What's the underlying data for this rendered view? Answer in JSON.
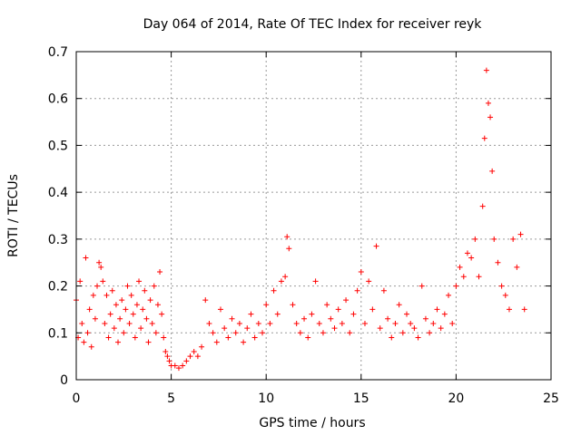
{
  "chart_data": {
    "type": "scatter",
    "title": "Day 064 of 2014, Rate Of TEC Index for receiver reyk",
    "xlabel": "GPS time / hours",
    "ylabel": "ROTI / TECUs",
    "xlim": [
      0,
      25
    ],
    "ylim": [
      0,
      0.7
    ],
    "xticks": [
      0,
      5,
      10,
      15,
      20,
      25
    ],
    "yticks": [
      0,
      0.1,
      0.2,
      0.3,
      0.4,
      0.5,
      0.6,
      0.7
    ],
    "xtick_labels": [
      "0",
      "5",
      "10",
      "15",
      "20",
      "25"
    ],
    "ytick_labels": [
      "0",
      "0.1",
      "0.2",
      "0.3",
      "0.4",
      "0.5",
      "0.6",
      "0.7"
    ],
    "grid": true,
    "marker": "+",
    "color": "#ff0000",
    "series": [
      {
        "name": "ROTI",
        "x": [
          0.0,
          0.1,
          0.2,
          0.3,
          0.4,
          0.5,
          0.6,
          0.7,
          0.8,
          0.9,
          1.0,
          1.1,
          1.2,
          1.3,
          1.4,
          1.5,
          1.6,
          1.7,
          1.8,
          1.9,
          2.0,
          2.1,
          2.2,
          2.3,
          2.4,
          2.5,
          2.6,
          2.7,
          2.8,
          2.9,
          3.0,
          3.1,
          3.2,
          3.3,
          3.4,
          3.5,
          3.6,
          3.7,
          3.8,
          3.9,
          4.0,
          4.1,
          4.2,
          4.3,
          4.4,
          4.5,
          4.6,
          4.7,
          4.8,
          4.9,
          5.0,
          5.2,
          5.4,
          5.6,
          5.8,
          6.0,
          6.2,
          6.4,
          6.6,
          6.8,
          7.0,
          7.2,
          7.4,
          7.6,
          7.8,
          8.0,
          8.2,
          8.4,
          8.6,
          8.8,
          9.0,
          9.2,
          9.4,
          9.6,
          9.8,
          10.0,
          10.2,
          10.4,
          10.6,
          10.8,
          11.0,
          11.1,
          11.2,
          11.4,
          11.6,
          11.8,
          12.0,
          12.2,
          12.4,
          12.6,
          12.8,
          13.0,
          13.2,
          13.4,
          13.6,
          13.8,
          14.0,
          14.2,
          14.4,
          14.6,
          14.8,
          15.0,
          15.2,
          15.4,
          15.6,
          15.8,
          16.0,
          16.2,
          16.4,
          16.6,
          16.8,
          17.0,
          17.2,
          17.4,
          17.6,
          17.8,
          18.0,
          18.2,
          18.4,
          18.6,
          18.8,
          19.0,
          19.2,
          19.4,
          19.6,
          19.8,
          20.0,
          20.2,
          20.4,
          20.6,
          20.8,
          21.0,
          21.2,
          21.4,
          21.5,
          21.6,
          21.7,
          21.8,
          21.9,
          22.0,
          22.2,
          22.4,
          22.6,
          22.8,
          23.0,
          23.2,
          23.4,
          23.6
        ],
        "y": [
          0.17,
          0.09,
          0.21,
          0.12,
          0.08,
          0.26,
          0.1,
          0.15,
          0.07,
          0.18,
          0.13,
          0.2,
          0.25,
          0.24,
          0.21,
          0.12,
          0.18,
          0.09,
          0.14,
          0.19,
          0.11,
          0.16,
          0.08,
          0.13,
          0.17,
          0.1,
          0.15,
          0.2,
          0.12,
          0.18,
          0.14,
          0.09,
          0.16,
          0.21,
          0.11,
          0.15,
          0.19,
          0.13,
          0.08,
          0.17,
          0.12,
          0.2,
          0.1,
          0.16,
          0.23,
          0.14,
          0.09,
          0.06,
          0.05,
          0.04,
          0.03,
          0.03,
          0.025,
          0.03,
          0.04,
          0.05,
          0.06,
          0.05,
          0.07,
          0.17,
          0.12,
          0.1,
          0.08,
          0.15,
          0.11,
          0.09,
          0.13,
          0.1,
          0.12,
          0.08,
          0.11,
          0.14,
          0.09,
          0.12,
          0.1,
          0.16,
          0.12,
          0.19,
          0.14,
          0.21,
          0.22,
          0.305,
          0.28,
          0.16,
          0.12,
          0.1,
          0.13,
          0.09,
          0.14,
          0.21,
          0.12,
          0.1,
          0.16,
          0.13,
          0.11,
          0.15,
          0.12,
          0.17,
          0.1,
          0.14,
          0.19,
          0.23,
          0.12,
          0.21,
          0.15,
          0.285,
          0.11,
          0.19,
          0.13,
          0.09,
          0.12,
          0.16,
          0.1,
          0.14,
          0.12,
          0.11,
          0.09,
          0.2,
          0.13,
          0.1,
          0.12,
          0.15,
          0.11,
          0.14,
          0.18,
          0.12,
          0.2,
          0.24,
          0.22,
          0.27,
          0.26,
          0.3,
          0.22,
          0.37,
          0.515,
          0.66,
          0.59,
          0.56,
          0.445,
          0.3,
          0.25,
          0.2,
          0.18,
          0.15,
          0.3,
          0.24,
          0.31,
          0.15
        ]
      }
    ]
  }
}
